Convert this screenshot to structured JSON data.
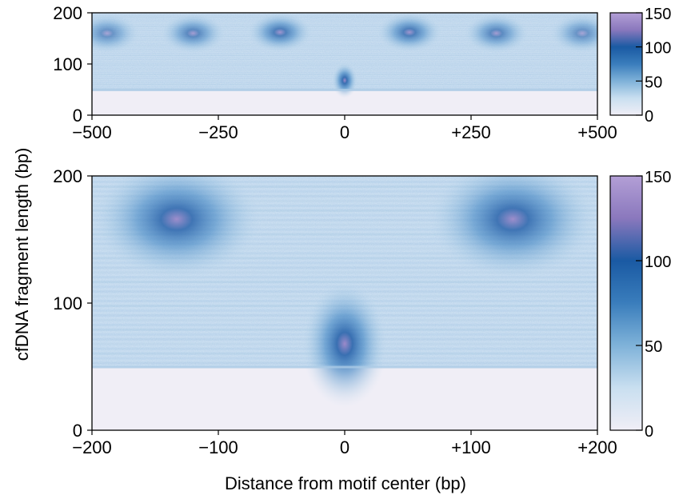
{
  "chart_data": [
    {
      "type": "heatmap",
      "panel": "top",
      "x_range": [
        -500,
        500
      ],
      "y_range": [
        0,
        200
      ],
      "x_ticks": [
        {
          "value": -500,
          "label": "−500"
        },
        {
          "value": -250,
          "label": "−250"
        },
        {
          "value": 0,
          "label": "0"
        },
        {
          "value": 250,
          "label": "+250"
        },
        {
          "value": 500,
          "label": "+500"
        }
      ],
      "y_ticks": [
        {
          "value": 0,
          "label": "0"
        },
        {
          "value": 100,
          "label": "100"
        },
        {
          "value": 200,
          "label": "200"
        }
      ],
      "colorbar": {
        "range": [
          0,
          150
        ],
        "ticks": [
          {
            "value": 0,
            "label": "0"
          },
          {
            "value": 50,
            "label": "50"
          },
          {
            "value": 100,
            "label": "100"
          },
          {
            "value": 150,
            "label": "150"
          }
        ]
      },
      "fragment_length_floor": 50,
      "hotspots": [
        {
          "x": -470,
          "y": 160,
          "intensity": 0.65
        },
        {
          "x": -300,
          "y": 160,
          "intensity": 0.75
        },
        {
          "x": -128,
          "y": 162,
          "intensity": 0.85
        },
        {
          "x": 128,
          "y": 162,
          "intensity": 0.85
        },
        {
          "x": 300,
          "y": 160,
          "intensity": 0.75
        },
        {
          "x": 470,
          "y": 160,
          "intensity": 0.65
        },
        {
          "x": 0,
          "y": 68,
          "intensity": 1.0
        }
      ]
    },
    {
      "type": "heatmap",
      "panel": "bottom",
      "x_range": [
        -200,
        200
      ],
      "y_range": [
        0,
        200
      ],
      "x_ticks": [
        {
          "value": -200,
          "label": "−200"
        },
        {
          "value": -100,
          "label": "−100"
        },
        {
          "value": 0,
          "label": "0"
        },
        {
          "value": 100,
          "label": "+100"
        },
        {
          "value": 200,
          "label": "+200"
        }
      ],
      "y_ticks": [
        {
          "value": 0,
          "label": "0"
        },
        {
          "value": 100,
          "label": "100"
        },
        {
          "value": 200,
          "label": "200"
        }
      ],
      "colorbar": {
        "range": [
          0,
          150
        ],
        "ticks": [
          {
            "value": 0,
            "label": "0"
          },
          {
            "value": 50,
            "label": "50"
          },
          {
            "value": 100,
            "label": "100"
          },
          {
            "value": 150,
            "label": "150"
          }
        ]
      },
      "fragment_length_floor": 50,
      "hotspots": [
        {
          "x": -133,
          "y": 166,
          "intensity": 0.95
        },
        {
          "x": 133,
          "y": 166,
          "intensity": 0.95
        },
        {
          "x": 0,
          "y": 68,
          "intensity": 1.0
        }
      ]
    }
  ],
  "labels": {
    "ylabel": "cfDNA fragment length (bp)",
    "xlabel": "Distance from motif center (bp)"
  },
  "colormap": [
    "#f0eef6",
    "#c9dff0",
    "#7fb2d9",
    "#3a7dbc",
    "#1a5aa3",
    "#8a78bd",
    "#b39fd6"
  ]
}
